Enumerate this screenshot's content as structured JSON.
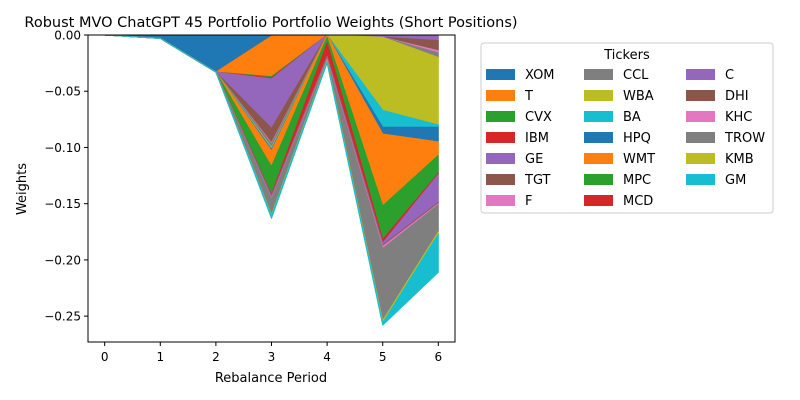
{
  "chart_data": {
    "type": "area",
    "stacked": true,
    "title": "Robust MVO ChatGPT 45 Portfolio Portfolio Weights (Short Positions)",
    "xlabel": "Rebalance Period",
    "ylabel": "Weights",
    "x": [
      0,
      1,
      2,
      3,
      4,
      5,
      6
    ],
    "xlim": [
      -0.3,
      6.3
    ],
    "ylim": [
      -0.273,
      0.0
    ],
    "xticks": [
      "0",
      "1",
      "2",
      "3",
      "4",
      "5",
      "6"
    ],
    "yticks": [
      0.0,
      -0.05,
      -0.1,
      -0.15,
      -0.2,
      -0.25
    ],
    "ytick_labels": [
      "0.00",
      "−0.05",
      "−0.10",
      "−0.15",
      "−0.20",
      "−0.25"
    ],
    "grid": false,
    "legend": {
      "title": "Tickers",
      "placement": "outside-right",
      "columns": 3
    },
    "series": [
      {
        "name": "XOM",
        "color": "#1f77b4",
        "values": [
          0,
          -0.003,
          -0.033,
          -0.001,
          0,
          0,
          0
        ]
      },
      {
        "name": "T",
        "color": "#ff7f0e",
        "values": [
          0,
          0,
          0,
          -0.036,
          0,
          0,
          0
        ]
      },
      {
        "name": "CVX",
        "color": "#2ca02c",
        "values": [
          0,
          0,
          0,
          -0.001,
          0,
          0,
          0
        ]
      },
      {
        "name": "IBM",
        "color": "#d62728",
        "values": [
          0,
          0,
          0,
          -0.001,
          0,
          0,
          0
        ]
      },
      {
        "name": "GE",
        "color": "#9467bd",
        "values": [
          0,
          0,
          0,
          -0.044,
          0,
          -0.002,
          -0.005
        ]
      },
      {
        "name": "TGT",
        "color": "#8c564b",
        "values": [
          0,
          0,
          0,
          -0.013,
          0,
          0,
          -0.009
        ]
      },
      {
        "name": "F",
        "color": "#e377c2",
        "values": [
          0,
          0,
          0,
          -0.001,
          0,
          0,
          -0.002
        ]
      },
      {
        "name": "CCL",
        "color": "#7f7f7f",
        "values": [
          0,
          0,
          0,
          -0.003,
          0,
          0,
          -0.004
        ]
      },
      {
        "name": "WBA",
        "color": "#bcbd22",
        "values": [
          0,
          0,
          0,
          -0.001,
          0,
          -0.065,
          -0.06
        ]
      },
      {
        "name": "BA",
        "color": "#17becf",
        "values": [
          0,
          0,
          0,
          -0.001,
          0,
          -0.015,
          -0.002
        ]
      },
      {
        "name": "HPQ",
        "color": "#1f77b4",
        "values": [
          0,
          0,
          0,
          -0.001,
          0,
          -0.006,
          -0.013
        ]
      },
      {
        "name": "WMT",
        "color": "#ff7f0e",
        "values": [
          0,
          0,
          0,
          -0.014,
          -0.002,
          -0.064,
          -0.012
        ]
      },
      {
        "name": "MPC",
        "color": "#2ca02c",
        "values": [
          0,
          0,
          0,
          -0.025,
          -0.005,
          -0.03,
          -0.016
        ]
      },
      {
        "name": "MCD",
        "color": "#d62728",
        "values": [
          0,
          0,
          0,
          -0.001,
          -0.012,
          -0.003,
          -0.001
        ]
      },
      {
        "name": "C",
        "color": "#9467bd",
        "values": [
          0,
          0,
          0,
          -0.001,
          -0.001,
          -0.002,
          -0.025
        ]
      },
      {
        "name": "DHI",
        "color": "#8c564b",
        "values": [
          0,
          0,
          0,
          -0.001,
          -0.001,
          -0.001,
          -0.001
        ]
      },
      {
        "name": "KHC",
        "color": "#e377c2",
        "values": [
          0,
          0,
          0,
          -0.001,
          -0.001,
          -0.002,
          -0.001
        ]
      },
      {
        "name": "TROW",
        "color": "#7f7f7f",
        "values": [
          0,
          0,
          0,
          -0.014,
          -0.001,
          -0.064,
          -0.024
        ]
      },
      {
        "name": "KMB",
        "color": "#bcbd22",
        "values": [
          0,
          0,
          0,
          -0.001,
          -0.001,
          -0.002,
          -0.002
        ]
      },
      {
        "name": "GM",
        "color": "#17becf",
        "values": [
          0,
          0,
          0,
          -0.002,
          -0.001,
          -0.002,
          -0.034
        ]
      }
    ]
  }
}
